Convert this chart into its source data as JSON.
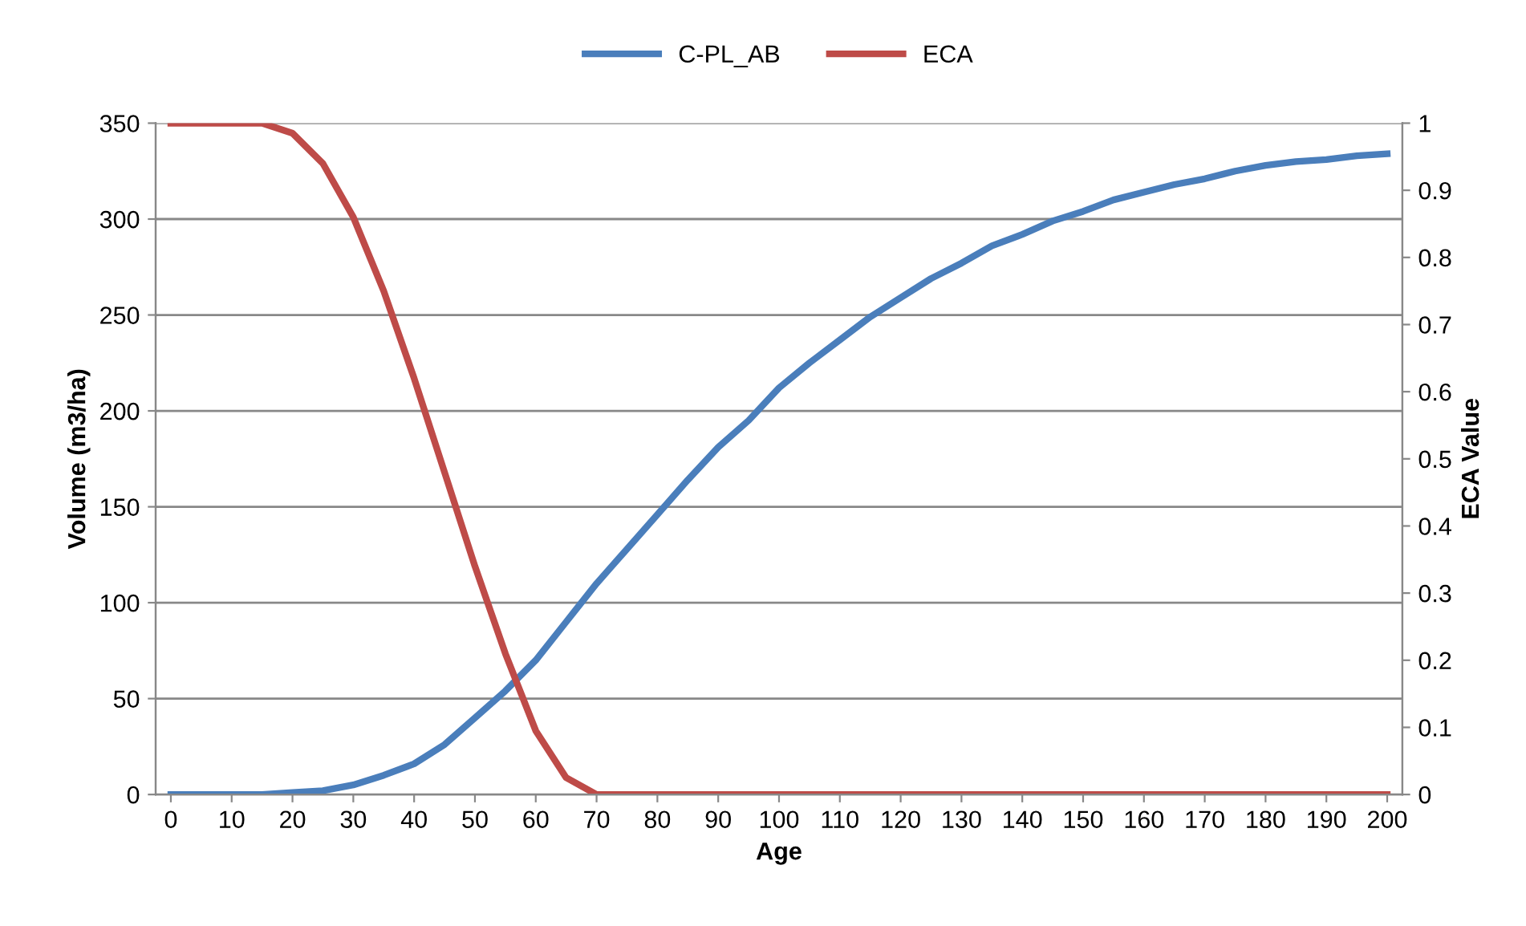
{
  "chart_data": {
    "type": "line",
    "xlabel": "Age",
    "ylabel": "Volume (m3/ha)",
    "y2label": "ECA Value",
    "x": [
      0,
      5,
      10,
      15,
      20,
      25,
      30,
      35,
      40,
      45,
      50,
      55,
      60,
      65,
      70,
      75,
      80,
      85,
      90,
      95,
      100,
      105,
      110,
      115,
      120,
      125,
      130,
      135,
      140,
      145,
      150,
      155,
      160,
      165,
      170,
      175,
      180,
      185,
      190,
      195,
      200
    ],
    "series": [
      {
        "name": "C-PL_AB",
        "color": "#4a7ebb",
        "values": [
          0,
          0,
          0,
          0,
          1,
          2,
          5,
          10,
          16,
          26,
          40,
          54,
          70,
          90,
          110,
          128,
          146,
          164,
          181,
          195,
          212,
          225,
          237,
          249,
          259,
          269,
          277,
          286,
          292,
          299,
          304,
          310,
          314,
          318,
          321,
          325,
          328,
          330,
          331,
          333,
          334
        ]
      },
      {
        "name": "ECA",
        "color": "#be4b48",
        "axis": "y2",
        "values": [
          1,
          1,
          1,
          1,
          0.985,
          0.94,
          0.86,
          0.75,
          0.62,
          0.48,
          0.34,
          0.21,
          0.095,
          0.025,
          0,
          0,
          0,
          0,
          0,
          0,
          0,
          0,
          0,
          0,
          0,
          0,
          0,
          0,
          0,
          0,
          0,
          0,
          0,
          0,
          0,
          0,
          0,
          0,
          0,
          0,
          0
        ]
      }
    ],
    "xlim": [
      -2.5,
      202.5
    ],
    "xticks": [
      0,
      10,
      20,
      30,
      40,
      50,
      60,
      70,
      80,
      90,
      100,
      110,
      120,
      130,
      140,
      150,
      160,
      170,
      180,
      190,
      200
    ],
    "ylim": [
      0,
      350
    ],
    "yticks": [
      0,
      50,
      100,
      150,
      200,
      250,
      300,
      350
    ],
    "y2lim": [
      0,
      1
    ],
    "y2ticks": [
      0,
      {
        "value": 0.1,
        "label": "0.1"
      },
      {
        "value": 0.2,
        "label": "0.2"
      },
      {
        "value": 0.3,
        "label": "0.3"
      },
      {
        "value": 0.4,
        "label": "0.4"
      },
      {
        "value": 0.5,
        "label": "0.5"
      },
      {
        "value": 0.6,
        "label": "0.6"
      },
      {
        "value": 0.7,
        "label": "0.7"
      },
      {
        "value": 0.8,
        "label": "0.8"
      },
      {
        "value": 0.9,
        "label": "0.9"
      },
      1
    ],
    "grid": "y",
    "legend": "top",
    "marker": "none",
    "line_style": "solid"
  }
}
